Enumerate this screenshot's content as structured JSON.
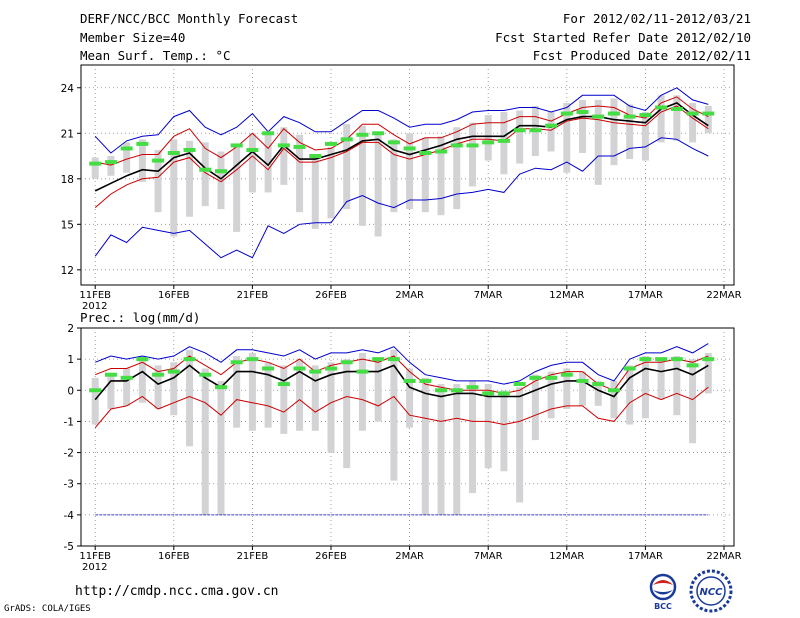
{
  "header": {
    "title": "DERF/NCC/BCC Monthly Forecast",
    "member_size": "Member Size=40",
    "variable": "Mean Surf. Temp.: °C",
    "forecast_period": "For 2012/02/11-2012/03/21",
    "started_refer": "Fcst Started Refer Date 2012/02/10",
    "produced": "Fcst Produced Date 2012/02/11"
  },
  "footer": {
    "url": "http://cmdp.ncc.cma.gov.cn",
    "credit": "GrADS: COLA/IGES",
    "logo_bcc": "BCC",
    "logo_ncc": "NCC"
  },
  "colors": {
    "max_min": "#0000cc",
    "spread": "#cc0000",
    "mean": "#000000",
    "obs_bar": "#d3d3d6",
    "highlight": "#44dd44",
    "grid": "#888888"
  },
  "chart_data": [
    {
      "type": "line",
      "title": "Mean Surf. Temp.: °C",
      "x_days": [
        0,
        1,
        2,
        3,
        4,
        5,
        6,
        7,
        8,
        9,
        10,
        11,
        12,
        13,
        14,
        15,
        16,
        17,
        18,
        19,
        20,
        21,
        22,
        23,
        24,
        25,
        26,
        27,
        28,
        29,
        30,
        31,
        32,
        33,
        34,
        35,
        36,
        37,
        38,
        39
      ],
      "xticks": [
        "11FEB",
        "16FEB",
        "21FEB",
        "26FEB",
        "2MAR",
        "7MAR",
        "12MAR",
        "17MAR",
        "22MAR"
      ],
      "xtick_days": [
        0,
        5,
        10,
        15,
        20,
        25,
        30,
        35,
        40
      ],
      "year_label": "2012",
      "ylim": [
        11,
        25.5
      ],
      "yticks": [
        12,
        15,
        18,
        21,
        24
      ],
      "series": [
        {
          "name": "max",
          "color": "#0000cc",
          "values": [
            20.8,
            19.7,
            20.5,
            20.8,
            20.9,
            22.1,
            22.5,
            21.4,
            20.9,
            21.4,
            22.3,
            21.1,
            22.1,
            21.7,
            21.1,
            21.1,
            21.8,
            22.5,
            22.5,
            22.0,
            21.4,
            21.6,
            21.6,
            21.9,
            22.4,
            22.5,
            22.5,
            22.7,
            22.7,
            22.4,
            22.7,
            23.5,
            23.5,
            23.5,
            22.8,
            22.5,
            23.5,
            24.0,
            23.2,
            22.9
          ]
        },
        {
          "name": "upper",
          "color": "#cc0000",
          "values": [
            19.1,
            18.9,
            19.3,
            19.6,
            19.6,
            20.8,
            21.3,
            20.0,
            19.4,
            20.1,
            21.0,
            20.0,
            21.3,
            20.4,
            19.9,
            20.0,
            20.6,
            21.6,
            21.6,
            20.9,
            20.3,
            20.7,
            20.7,
            21.1,
            21.6,
            21.7,
            21.7,
            22.1,
            22.1,
            21.8,
            22.3,
            22.7,
            22.8,
            22.7,
            22.2,
            22.0,
            23.0,
            23.4,
            22.6,
            22.1
          ]
        },
        {
          "name": "mean",
          "color": "#000000",
          "values": [
            17.2,
            17.7,
            18.2,
            18.6,
            18.5,
            19.4,
            19.7,
            18.7,
            18.0,
            18.9,
            19.8,
            18.9,
            20.2,
            19.3,
            19.3,
            19.6,
            19.9,
            20.5,
            20.6,
            19.9,
            19.6,
            19.9,
            20.2,
            20.6,
            20.8,
            20.8,
            20.8,
            21.5,
            21.5,
            21.4,
            21.9,
            22.1,
            22.1,
            21.9,
            21.8,
            21.7,
            22.6,
            23.0,
            22.2,
            21.5
          ]
        },
        {
          "name": "lower",
          "color": "#cc0000",
          "values": [
            16.1,
            17.0,
            17.6,
            18.0,
            18.1,
            19.1,
            19.4,
            18.4,
            17.8,
            18.6,
            19.5,
            18.6,
            20.0,
            19.1,
            19.1,
            19.4,
            19.8,
            20.4,
            20.4,
            19.6,
            19.3,
            19.6,
            19.9,
            20.3,
            20.6,
            20.6,
            20.5,
            21.3,
            21.3,
            21.2,
            21.8,
            22.0,
            21.9,
            21.7,
            21.6,
            21.5,
            22.4,
            22.8,
            22.0,
            21.3
          ]
        },
        {
          "name": "min",
          "color": "#0000cc",
          "values": [
            12.9,
            14.3,
            13.8,
            14.8,
            14.6,
            14.4,
            14.6,
            13.7,
            12.8,
            13.3,
            12.8,
            14.9,
            14.4,
            15.0,
            15.1,
            15.1,
            16.5,
            16.9,
            16.4,
            16.1,
            16.6,
            16.6,
            16.7,
            17.0,
            17.1,
            17.3,
            17.1,
            18.3,
            18.7,
            18.6,
            19.1,
            18.5,
            19.5,
            19.5,
            20.0,
            20.1,
            20.7,
            20.6,
            20.0,
            19.5
          ]
        }
      ],
      "observed_bars": {
        "color": "#d3d3d6",
        "low": [
          18.0,
          18.2,
          18.4,
          17.8,
          15.8,
          14.2,
          15.5,
          16.2,
          16.0,
          14.5,
          17.1,
          17.1,
          17.6,
          15.8,
          14.7,
          15.4,
          16.0,
          14.9,
          14.2,
          15.8,
          16.0,
          15.8,
          15.6,
          16.0,
          17.5,
          19.2,
          18.3,
          19.0,
          19.5,
          19.8,
          18.4,
          19.7,
          17.6,
          18.9,
          19.3,
          19.2,
          20.4,
          20.5,
          20.4,
          21.0
        ],
        "high": [
          19.4,
          19.5,
          20.4,
          20.6,
          19.9,
          20.6,
          20.5,
          20.4,
          19.8,
          20.1,
          21.0,
          20.9,
          21.4,
          20.9,
          19.6,
          20.1,
          21.6,
          21.5,
          21.0,
          20.6,
          21.0,
          20.7,
          20.8,
          21.4,
          21.7,
          22.2,
          22.4,
          22.5,
          22.8,
          22.4,
          23.0,
          23.2,
          23.2,
          23.3,
          22.9,
          22.4,
          23.5,
          23.5,
          23.0,
          22.8
        ]
      },
      "observed_marks": {
        "color": "#44dd44",
        "values": [
          19.0,
          19.1,
          20.0,
          20.3,
          19.2,
          19.7,
          19.9,
          18.6,
          18.5,
          20.2,
          19.9,
          21.0,
          20.2,
          20.1,
          19.5,
          20.3,
          20.6,
          20.9,
          21.0,
          20.4,
          20.0,
          19.7,
          19.8,
          20.2,
          20.2,
          20.4,
          20.5,
          21.2,
          21.2,
          21.5,
          22.3,
          22.4,
          22.1,
          22.3,
          22.1,
          22.2,
          22.7,
          22.6,
          22.3,
          22.3
        ]
      }
    },
    {
      "type": "line",
      "title": "Prec.: log(mm/d)",
      "x_days": [
        0,
        1,
        2,
        3,
        4,
        5,
        6,
        7,
        8,
        9,
        10,
        11,
        12,
        13,
        14,
        15,
        16,
        17,
        18,
        19,
        20,
        21,
        22,
        23,
        24,
        25,
        26,
        27,
        28,
        29,
        30,
        31,
        32,
        33,
        34,
        35,
        36,
        37,
        38,
        39
      ],
      "xticks": [
        "11FEB",
        "16FEB",
        "21FEB",
        "26FEB",
        "2MAR",
        "7MAR",
        "12MAR",
        "17MAR",
        "22MAR"
      ],
      "xtick_days": [
        0,
        5,
        10,
        15,
        20,
        25,
        30,
        35,
        40
      ],
      "year_label": "2012",
      "ylim": [
        -5,
        2
      ],
      "yticks": [
        -5,
        -4,
        -3,
        -2,
        -1,
        0,
        1,
        2
      ],
      "series": [
        {
          "name": "max",
          "color": "#0000cc",
          "values": [
            0.9,
            1.1,
            1.0,
            1.1,
            1.0,
            1.1,
            1.4,
            1.2,
            0.9,
            1.3,
            1.3,
            1.2,
            1.1,
            1.3,
            1.0,
            1.2,
            1.2,
            1.3,
            1.2,
            1.4,
            0.9,
            0.5,
            0.4,
            0.3,
            0.3,
            0.3,
            0.2,
            0.3,
            0.6,
            0.8,
            0.9,
            0.9,
            0.5,
            0.3,
            1.0,
            1.2,
            1.2,
            1.4,
            1.2,
            1.5
          ]
        },
        {
          "name": "upper",
          "color": "#cc0000",
          "values": [
            0.5,
            0.7,
            0.7,
            0.9,
            0.6,
            0.7,
            1.1,
            0.8,
            0.5,
            0.9,
            1.0,
            0.9,
            0.7,
            1.0,
            0.6,
            0.8,
            0.9,
            1.0,
            0.9,
            1.1,
            0.6,
            0.2,
            0.1,
            0.0,
            0.0,
            0.0,
            -0.1,
            0.0,
            0.3,
            0.5,
            0.6,
            0.6,
            0.2,
            0.0,
            0.7,
            0.9,
            0.9,
            1.0,
            0.9,
            1.1
          ]
        },
        {
          "name": "mean",
          "color": "#000000",
          "values": [
            -0.3,
            0.3,
            0.3,
            0.6,
            0.2,
            0.4,
            0.8,
            0.4,
            0.1,
            0.6,
            0.6,
            0.5,
            0.3,
            0.6,
            0.3,
            0.5,
            0.6,
            0.6,
            0.6,
            0.8,
            0.1,
            -0.1,
            -0.2,
            -0.1,
            -0.1,
            -0.2,
            -0.2,
            -0.2,
            0.0,
            0.2,
            0.3,
            0.3,
            0.0,
            -0.2,
            0.4,
            0.7,
            0.6,
            0.7,
            0.5,
            0.8
          ]
        },
        {
          "name": "lower",
          "color": "#cc0000",
          "values": [
            -1.2,
            -0.6,
            -0.5,
            -0.2,
            -0.6,
            -0.4,
            -0.2,
            -0.4,
            -0.8,
            -0.3,
            -0.4,
            -0.5,
            -0.7,
            -0.3,
            -0.7,
            -0.4,
            -0.2,
            -0.3,
            -0.5,
            -0.2,
            -0.8,
            -0.9,
            -1.0,
            -0.9,
            -1.0,
            -1.0,
            -1.1,
            -1.0,
            -0.8,
            -0.6,
            -0.5,
            -0.5,
            -0.9,
            -1.0,
            -0.4,
            -0.1,
            -0.3,
            -0.1,
            -0.3,
            0.1
          ]
        },
        {
          "name": "missing_floor",
          "color": "#0000cc",
          "values": [
            -4,
            -4,
            -4,
            -4,
            -4,
            -4,
            -4,
            -4,
            -4,
            -4,
            -4,
            -4,
            -4,
            -4,
            -4,
            -4,
            -4,
            -4,
            -4,
            -4,
            -4,
            -4,
            -4,
            -4,
            -4,
            -4,
            -4,
            -4,
            -4,
            -4,
            -4,
            -4,
            -4,
            -4,
            -4,
            -4,
            -4,
            -4,
            -4,
            -4
          ]
        }
      ],
      "observed_bars": {
        "color": "#d3d3d6",
        "low": [
          -1.1,
          -0.6,
          -0.5,
          -0.4,
          -0.6,
          -0.8,
          -1.8,
          -4.0,
          -4.0,
          -1.2,
          -1.3,
          -1.2,
          -1.4,
          -1.3,
          -1.3,
          -2.0,
          -2.5,
          -1.3,
          -1.0,
          -2.9,
          -1.2,
          -4.0,
          -4.0,
          -4.0,
          -3.3,
          -2.5,
          -2.6,
          -3.6,
          -1.6,
          -0.9,
          -0.6,
          -0.5,
          -0.5,
          -0.9,
          -1.1,
          -0.9,
          -0.3,
          -0.8,
          -1.7,
          -0.1
        ],
        "high": [
          0.4,
          0.5,
          0.7,
          1.1,
          0.8,
          0.9,
          1.3,
          0.7,
          0.3,
          1.1,
          1.2,
          0.9,
          0.8,
          1.0,
          0.8,
          0.9,
          1.0,
          1.2,
          1.0,
          1.3,
          0.7,
          0.4,
          0.2,
          0.2,
          0.3,
          0.2,
          0.0,
          0.1,
          0.5,
          0.6,
          0.7,
          0.6,
          0.3,
          0.3,
          0.8,
          1.1,
          1.0,
          1.1,
          1.0,
          1.2
        ]
      },
      "observed_marks": {
        "color": "#44dd44",
        "values": [
          0.0,
          0.5,
          0.4,
          1.0,
          0.5,
          0.6,
          1.0,
          0.5,
          0.1,
          0.9,
          1.0,
          0.7,
          0.2,
          0.7,
          0.6,
          0.7,
          0.9,
          0.6,
          1.0,
          1.0,
          0.3,
          0.3,
          0.0,
          0.0,
          0.1,
          -0.1,
          -0.1,
          0.2,
          0.4,
          0.4,
          0.5,
          0.3,
          0.2,
          0.0,
          0.7,
          1.0,
          1.0,
          1.0,
          0.8,
          1.0
        ]
      }
    }
  ]
}
